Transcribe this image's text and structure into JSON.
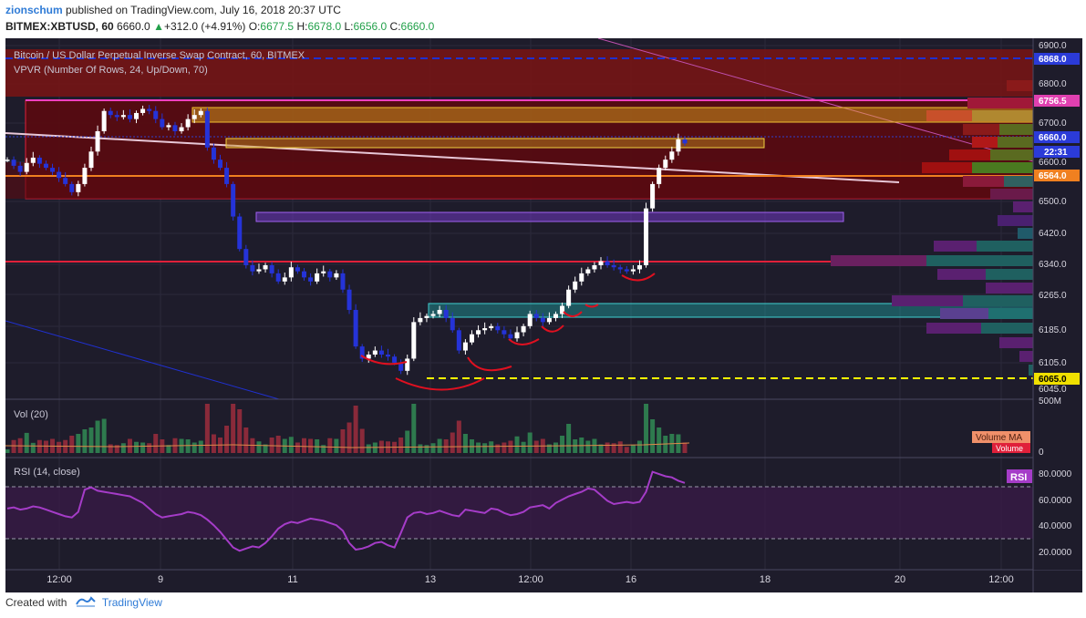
{
  "header": {
    "author": "zionschum",
    "published_text": " published on TradingView.com, July 16, 2018 20:37 UTC",
    "symbol": "BITMEX:XBTUSD, 60",
    "price": "6660.0",
    "change_arrow": "▲",
    "change": "+312.0 (+4.91%)",
    "o_label": "O:",
    "o_value": "6677.5",
    "h_label": "H:",
    "h_value": "6678.0",
    "l_label": "L:",
    "l_value": "6656.0",
    "c_label": "C:",
    "c_value": "6660.0"
  },
  "main": {
    "title": "Bitcoin / US Dollar Perpetual Inverse Swap Contract, 60, BITMEX",
    "indicator": "VPVR (Number Of Rows, 24, Up/Down, 70)"
  },
  "volume_pane": {
    "label": "Vol (20)",
    "axis_top": "500M",
    "axis_bottom": "0",
    "ma_badge": "Volume MA",
    "volume_badge": "Volume"
  },
  "rsi_pane": {
    "label": "RSI (14, close)",
    "badge": "RSI",
    "ticks": [
      "80.0000",
      "60.0000",
      "40.0000",
      "20.0000"
    ]
  },
  "price_ticks": [
    "6900.0",
    "6800.0",
    "6700.0",
    "6600.0",
    "6500.0",
    "6420.0",
    "6340.0",
    "6265.0",
    "6185.0",
    "6105.0",
    "6045.0"
  ],
  "price_labels": {
    "resistance": "6868.0",
    "level_pink": "6756.5",
    "current": "6660.0",
    "countdown": "22:31",
    "level_orange": "6564.0",
    "support_yellow": "6065.0"
  },
  "time_ticks": [
    "12:00",
    "9",
    "11",
    "13",
    "12:00",
    "16",
    "18",
    "20",
    "12:00"
  ],
  "footer": {
    "created_with": "Created with",
    "brand": "TradingView"
  },
  "colors": {
    "background": "#1e1c2b",
    "candle_up": "#ffffff",
    "candle_down": "#2533d8",
    "rsi_line": "#a53cc8",
    "resistance_line": "#2030d0",
    "support_line": "#ffff00",
    "red_line": "#e0203a",
    "label_blue": "#2b3bd8",
    "label_pink": "#e040b0",
    "label_orange": "#f08020",
    "label_yellow": "#f0e000"
  },
  "chart_data": {
    "type": "candlestick",
    "price_range": [
      6030,
      6910
    ],
    "closes": [
      6620,
      6605,
      6590,
      6612,
      6625,
      6610,
      6600,
      6590,
      6575,
      6560,
      6540,
      6560,
      6600,
      6640,
      6690,
      6740,
      6730,
      6725,
      6730,
      6720,
      6735,
      6745,
      6740,
      6720,
      6700,
      6705,
      6690,
      6700,
      6720,
      6730,
      6740,
      6650,
      6620,
      6600,
      6560,
      6480,
      6400,
      6360,
      6345,
      6350,
      6360,
      6340,
      6320,
      6330,
      6355,
      6345,
      6330,
      6320,
      6340,
      6345,
      6330,
      6340,
      6300,
      6250,
      6160,
      6130,
      6140,
      6150,
      6140,
      6135,
      6120,
      6100,
      6130,
      6220,
      6230,
      6235,
      6240,
      6250,
      6230,
      6200,
      6150,
      6170,
      6190,
      6200,
      6205,
      6210,
      6200,
      6190,
      6180,
      6195,
      6210,
      6240,
      6230,
      6220,
      6230,
      6240,
      6260,
      6300,
      6320,
      6340,
      6350,
      6360,
      6370,
      6360,
      6355,
      6350,
      6345,
      6350,
      6360,
      6500,
      6560,
      6600,
      6620,
      6640,
      6670,
      6660
    ],
    "volume_pane_range": [
      0,
      500
    ],
    "rsi": [
      55,
      56,
      54,
      55,
      57,
      56,
      54,
      52,
      50,
      48,
      47,
      52,
      72,
      74,
      71,
      70,
      69,
      68,
      67,
      66,
      63,
      60,
      55,
      50,
      47,
      48,
      49,
      50,
      52,
      51,
      49,
      45,
      40,
      34,
      27,
      20,
      17,
      19,
      21,
      20,
      24,
      30,
      37,
      41,
      43,
      42,
      44,
      46,
      45,
      44,
      42,
      40,
      35,
      24,
      18,
      19,
      21,
      24,
      25,
      22,
      20,
      33,
      47,
      51,
      52,
      50,
      51,
      53,
      51,
      49,
      48,
      54,
      53,
      52,
      51,
      55,
      54,
      51,
      49,
      50,
      52,
      56,
      57,
      58,
      55,
      60,
      63,
      66,
      68,
      70,
      73,
      72,
      67,
      62,
      59,
      60,
      61,
      60,
      61,
      70,
      88,
      86,
      84,
      83,
      80,
      78
    ],
    "rsi_range": [
      0,
      100
    ],
    "rsi_levels": [
      70,
      30
    ],
    "levels": [
      6868.0,
      6756.5,
      6564.0,
      6065.0
    ]
  }
}
